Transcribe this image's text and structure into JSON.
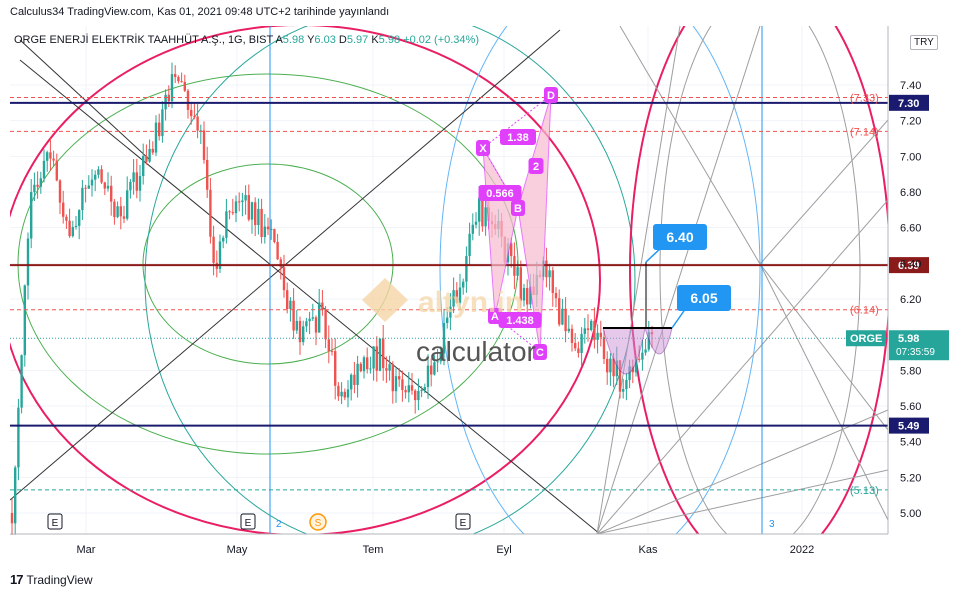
{
  "header": {
    "published": "Calculus34 TradingView.com, Kas 01, 2021 09:48 UTC+2 tarihinde yayınlandı"
  },
  "symbol": {
    "name": "ORGE ENERJİ ELEKTRİK TAAHHÜT A.Ş., 1G, BIST",
    "a_label": "A",
    "a_value": "5.98",
    "y_label": "Y",
    "y_value": "6.03",
    "d_label": "D",
    "d_value": "5.97",
    "k_label": "K",
    "k_value": "5.98",
    "change": "+0.02 (+0.34%)"
  },
  "currency_button": "TRY",
  "watermark": {
    "brand": "altyn.in",
    "sub": "calculator"
  },
  "footer": {
    "logo": "17",
    "brand": "TradingView"
  },
  "colors": {
    "up": "#26a69a",
    "down": "#ef5350",
    "navy": "#1a1a6e",
    "darkred": "#8b1a1a",
    "pink": "#e91e63",
    "magenta": "#e040fb",
    "blue_label": "#2196f3"
  },
  "chart_data": {
    "type": "candlestick",
    "x_tick_labels": [
      "Mar",
      "May",
      "Tem",
      "Eyl",
      "Kas",
      "2022"
    ],
    "y_tick_labels": [
      "7.40",
      "7.20",
      "7.00",
      "6.80",
      "6.60",
      "6.40",
      "6.20",
      "5.80",
      "5.60",
      "5.40",
      "5.20",
      "5.00"
    ],
    "ylim": [
      4.87,
      7.62
    ],
    "horizontal_lines": [
      {
        "value": 7.3,
        "label": "7.30",
        "style": "solid",
        "color": "#1a1a6e"
      },
      {
        "value": 6.39,
        "label": "6.39",
        "style": "solid",
        "color": "#8b1a1a"
      },
      {
        "value": 5.49,
        "label": "5.49",
        "style": "solid",
        "color": "#1a1a6e"
      },
      {
        "value": 7.33,
        "label": "(7.33)",
        "style": "dashed",
        "color": "#ef5350"
      },
      {
        "value": 7.14,
        "label": "(7.14)",
        "style": "dashed",
        "color": "#ef5350"
      },
      {
        "value": 6.14,
        "label": "(6.14)",
        "style": "dashed",
        "color": "#ef5350"
      },
      {
        "value": 5.13,
        "label": "(5.13)",
        "style": "dashed",
        "color": "#26a69a"
      }
    ],
    "last_price": {
      "symbol": "ORGE",
      "value": "5.98",
      "countdown": "07:35:59"
    },
    "harmonic_points": [
      "X",
      "A",
      "B",
      "C",
      "D"
    ],
    "harmonic_ratios": [
      "0.566",
      "1.438",
      "1.38",
      "2"
    ],
    "callouts": [
      "6.40",
      "6.05"
    ],
    "event_markers": [
      "E",
      "E",
      "E",
      "S"
    ],
    "cycle_numbers": [
      "2",
      "3"
    ]
  }
}
